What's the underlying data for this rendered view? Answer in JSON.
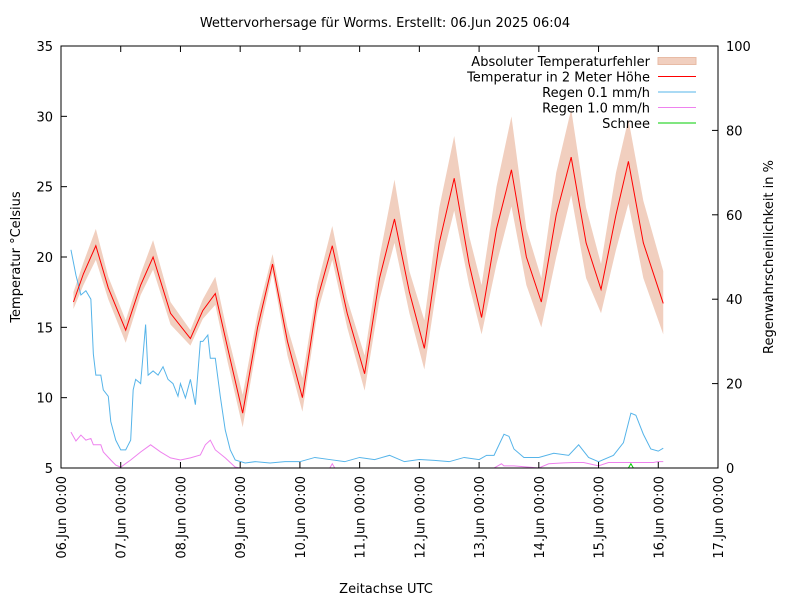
{
  "chart_data": {
    "type": "line",
    "title": "Wettervorhersage für Worms. Erstellt: 06.Jun 2025 06:04",
    "xlabel": "Zeitachse UTC",
    "ylabel": "Temperatur °Celsius",
    "y2label": "Regenwahrscheinlichkeit in %",
    "xlim": [
      "2025-06-06T00:00",
      "2025-06-17T00:00"
    ],
    "ylim": [
      5,
      35
    ],
    "y2lim": [
      0,
      100
    ],
    "xticks": [
      "06.Jun 00:00",
      "07.Jun 00:00",
      "08.Jun 00:00",
      "09.Jun 00:00",
      "10.Jun 00:00",
      "11.Jun 00:00",
      "12.Jun 00:00",
      "13.Jun 00:00",
      "14.Jun 00:00",
      "15.Jun 00:00",
      "16.Jun 00:00",
      "17.Jun 00:00"
    ],
    "yticks": [
      "5",
      "10",
      "15",
      "20",
      "25",
      "30",
      "35"
    ],
    "y2ticks": [
      "0",
      "20",
      "40",
      "60",
      "80",
      "100"
    ],
    "grid": false,
    "legend_position": "top-right",
    "colors": {
      "band": "#f1cfbf",
      "temperature": "#ff0000",
      "rain01": "#56b4e9",
      "rain10": "#ee82ee",
      "snow": "#00cc00"
    },
    "legend": [
      "Absoluter Temperaturfehler",
      "Temperatur in 2 Meter Höhe",
      "Regen 0.1 mm/h",
      "Regen 1.0 mm/h",
      "Schnee"
    ],
    "temperature": {
      "x": [
        "2025-06-06T05:00",
        "2025-06-06T09:00",
        "2025-06-06T14:00",
        "2025-06-06T19:00",
        "2025-06-07T02:00",
        "2025-06-07T08:00",
        "2025-06-07T13:00",
        "2025-06-07T20:00",
        "2025-06-08T04:00",
        "2025-06-08T09:00",
        "2025-06-08T14:00",
        "2025-06-08T19:00",
        "2025-06-09T01:00",
        "2025-06-09T07:00",
        "2025-06-09T13:00",
        "2025-06-09T19:00",
        "2025-06-10T01:00",
        "2025-06-10T07:00",
        "2025-06-10T13:00",
        "2025-06-10T19:00",
        "2025-06-11T02:00",
        "2025-06-11T08:00",
        "2025-06-11T14:00",
        "2025-06-11T20:00",
        "2025-06-12T02:00",
        "2025-06-12T08:00",
        "2025-06-12T14:00",
        "2025-06-12T20:00",
        "2025-06-13T01:00",
        "2025-06-13T07:00",
        "2025-06-13T13:00",
        "2025-06-13T19:00",
        "2025-06-14T01:00",
        "2025-06-14T07:00",
        "2025-06-14T13:00",
        "2025-06-14T19:00",
        "2025-06-15T01:00",
        "2025-06-15T07:00",
        "2025-06-15T12:00",
        "2025-06-15T18:00",
        "2025-06-16T02:00"
      ],
      "value": [
        16.8,
        18.8,
        20.8,
        17.8,
        14.8,
        18.0,
        20.0,
        16.0,
        14.2,
        16.2,
        17.4,
        13.5,
        8.9,
        15.0,
        19.5,
        14.0,
        10.0,
        17.0,
        20.8,
        16.0,
        11.7,
        18.5,
        22.7,
        17.5,
        13.5,
        21.0,
        25.6,
        19.5,
        15.7,
        22.0,
        26.2,
        20.0,
        16.8,
        23.0,
        27.1,
        21.0,
        17.7,
        23.0,
        26.8,
        21.0,
        16.7
      ],
      "error_low": [
        16.3,
        18.0,
        19.8,
        17.0,
        13.9,
        17.3,
        19.1,
        15.2,
        13.7,
        15.6,
        16.6,
        12.5,
        7.9,
        14.0,
        18.9,
        13.0,
        9.0,
        16.0,
        19.8,
        15.0,
        10.5,
        17.0,
        21.0,
        16.0,
        12.0,
        19.0,
        23.3,
        18.0,
        14.5,
        19.5,
        23.6,
        18.0,
        15.0,
        20.0,
        24.4,
        18.5,
        16.0,
        20.5,
        23.8,
        18.5,
        14.5
      ],
      "error_high": [
        17.5,
        19.6,
        22.0,
        18.6,
        15.5,
        18.8,
        21.2,
        16.8,
        14.8,
        17.0,
        18.6,
        14.5,
        10.2,
        16.0,
        20.2,
        15.0,
        11.4,
        18.0,
        22.2,
        17.0,
        13.0,
        20.0,
        25.5,
        19.0,
        15.5,
        23.5,
        28.6,
        21.5,
        18.0,
        25.0,
        30.0,
        22.0,
        18.5,
        26.0,
        30.5,
        23.5,
        19.5,
        26.0,
        29.8,
        24.0,
        19.0
      ]
    },
    "rain_0_1": {
      "x": [
        "2025-06-06T04:00",
        "2025-06-06T06:00",
        "2025-06-06T08:00",
        "2025-06-06T10:00",
        "2025-06-06T12:00",
        "2025-06-06T13:00",
        "2025-06-06T14:00",
        "2025-06-06T16:00",
        "2025-06-06T17:00",
        "2025-06-06T19:00",
        "2025-06-06T20:00",
        "2025-06-06T22:00",
        "2025-06-07T00:00",
        "2025-06-07T02:00",
        "2025-06-07T04:00",
        "2025-06-07T05:00",
        "2025-06-07T06:00",
        "2025-06-07T08:00",
        "2025-06-07T10:00",
        "2025-06-07T11:00",
        "2025-06-07T13:00",
        "2025-06-07T15:00",
        "2025-06-07T17:00",
        "2025-06-07T19:00",
        "2025-06-07T21:00",
        "2025-06-07T23:00",
        "2025-06-08T00:00",
        "2025-06-08T02:00",
        "2025-06-08T04:00",
        "2025-06-08T06:00",
        "2025-06-08T08:00",
        "2025-06-08T09:00",
        "2025-06-08T11:00",
        "2025-06-08T12:00",
        "2025-06-08T14:00",
        "2025-06-08T16:00",
        "2025-06-08T18:00",
        "2025-06-08T20:00",
        "2025-06-08T22:00",
        "2025-06-09T02:00",
        "2025-06-09T06:00",
        "2025-06-09T12:00",
        "2025-06-09T18:00",
        "2025-06-10T00:00",
        "2025-06-10T06:00",
        "2025-06-10T12:00",
        "2025-06-10T18:00",
        "2025-06-11T00:00",
        "2025-06-11T06:00",
        "2025-06-11T12:00",
        "2025-06-11T18:00",
        "2025-06-12T00:00",
        "2025-06-12T06:00",
        "2025-06-12T12:00",
        "2025-06-12T18:00",
        "2025-06-13T00:00",
        "2025-06-13T03:00",
        "2025-06-13T06:00",
        "2025-06-13T10:00",
        "2025-06-13T12:00",
        "2025-06-13T14:00",
        "2025-06-13T18:00",
        "2025-06-14T00:00",
        "2025-06-14T06:00",
        "2025-06-14T12:00",
        "2025-06-14T16:00",
        "2025-06-14T20:00",
        "2025-06-15T00:00",
        "2025-06-15T06:00",
        "2025-06-15T10:00",
        "2025-06-15T13:00",
        "2025-06-15T15:00",
        "2025-06-15T18:00",
        "2025-06-15T21:00",
        "2025-06-16T00:00",
        "2025-06-16T02:00"
      ],
      "value": [
        51.7,
        45.7,
        41,
        42,
        40,
        27,
        22,
        22,
        18.5,
        17,
        11,
        6.6,
        4.3,
        4.3,
        6.6,
        18.5,
        21,
        20,
        34,
        22,
        23,
        22,
        24,
        21,
        20,
        17,
        20,
        16.6,
        21,
        15,
        30,
        30,
        31.5,
        26,
        26,
        17,
        9,
        4.3,
        1.9,
        1.2,
        1.5,
        1.2,
        1.5,
        1.5,
        2.5,
        2.0,
        1.5,
        2.5,
        2.0,
        3.0,
        1.5,
        2.0,
        1.8,
        1.5,
        2.5,
        2.0,
        3.0,
        3.0,
        8.0,
        7.5,
        4.5,
        2.5,
        2.5,
        3.5,
        3.0,
        5.5,
        2.5,
        1.5,
        3.0,
        6.0,
        13,
        12.5,
        8,
        4.5,
        4,
        4.7
      ]
    },
    "rain_1_0": {
      "x": [
        "2025-06-06T04:00",
        "2025-06-06T06:00",
        "2025-06-06T08:00",
        "2025-06-06T10:00",
        "2025-06-06T12:00",
        "2025-06-06T13:00",
        "2025-06-06T16:00",
        "2025-06-06T17:00",
        "2025-06-06T20:00",
        "2025-06-06T22:00",
        "2025-06-07T00:00",
        "2025-06-07T04:00",
        "2025-06-07T08:00",
        "2025-06-07T12:00",
        "2025-06-07T16:00",
        "2025-06-07T20:00",
        "2025-06-08T00:00",
        "2025-06-08T04:00",
        "2025-06-08T08:00",
        "2025-06-08T10:00",
        "2025-06-08T12:00",
        "2025-06-08T14:00",
        "2025-06-08T18:00",
        "2025-06-08T22:00",
        "2025-06-09T00:00",
        "2025-06-10T12:00",
        "2025-06-10T13:00",
        "2025-06-10T14:00",
        "2025-06-13T06:00",
        "2025-06-13T09:00",
        "2025-06-13T10:00",
        "2025-06-13T14:00",
        "2025-06-14T00:00",
        "2025-06-14T04:00",
        "2025-06-14T10:00",
        "2025-06-14T14:00",
        "2025-06-14T18:00",
        "2025-06-15T00:00",
        "2025-06-15T04:00",
        "2025-06-15T10:00",
        "2025-06-15T16:00",
        "2025-06-15T22:00",
        "2025-06-16T00:00",
        "2025-06-16T02:00"
      ],
      "value": [
        8.5,
        6.4,
        7.8,
        6.6,
        7,
        5.5,
        5.5,
        3.8,
        1.9,
        0.7,
        0.2,
        1.9,
        3.8,
        5.5,
        3.8,
        2.4,
        1.9,
        2.4,
        3.1,
        5.5,
        6.6,
        4.3,
        2.4,
        0.2,
        0,
        0,
        1,
        0,
        0,
        1,
        0.5,
        0.5,
        0,
        1,
        1.2,
        1.3,
        1.3,
        0.5,
        1.3,
        1.3,
        1.3,
        1.3,
        1.5,
        1.5
      ]
    },
    "snow": {
      "x": [
        "2025-06-06T04:00",
        "2025-06-15T12:00",
        "2025-06-15T13:00",
        "2025-06-15T14:00",
        "2025-06-16T02:00"
      ],
      "value": [
        0,
        0,
        1,
        0,
        0
      ]
    }
  }
}
